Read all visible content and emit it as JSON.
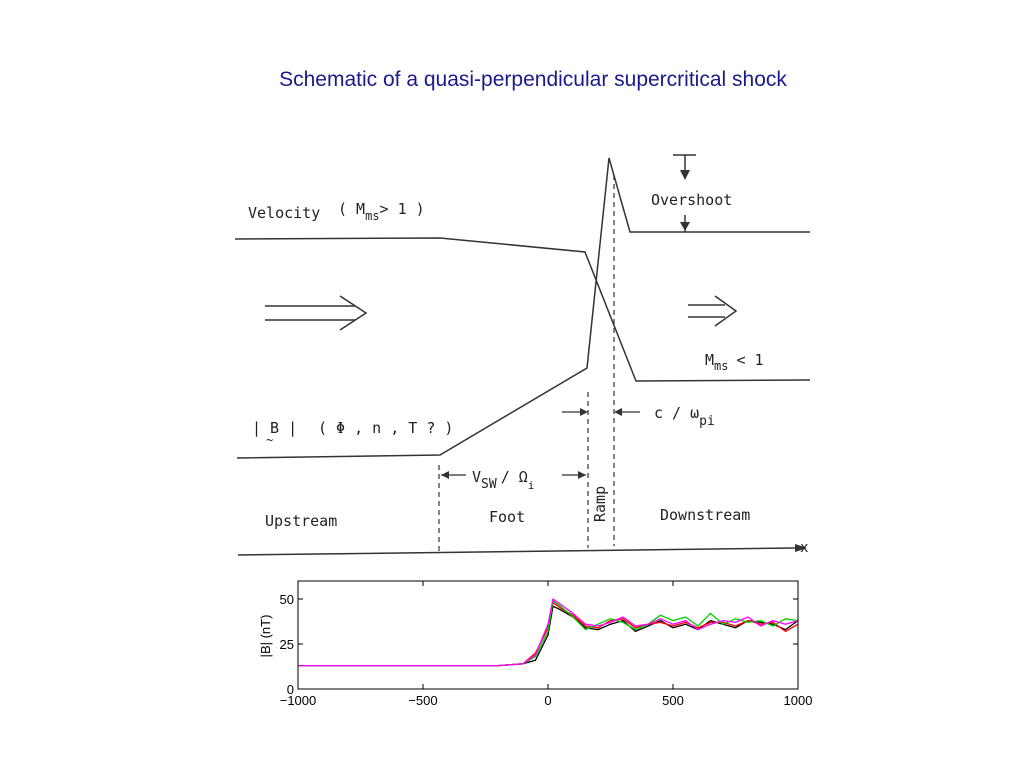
{
  "title": "Schematic of a quasi-perpendicular supercritical shock",
  "schematic": {
    "velocity_label": "Velocity",
    "velocity_condition_open": "( M",
    "velocity_condition_sub": "ms",
    "velocity_condition_close": "> 1 )",
    "overshoot_label": "Overshoot",
    "downstream_mach": "M",
    "downstream_mach_sub": "ms",
    "downstream_mach_rel": "< 1",
    "b_label": "| B |",
    "b_params": "( Φ , n , T  ? )",
    "inertial_length": "c / ω",
    "inertial_length_sub": "pi",
    "foot_width": "V",
    "foot_width_sub": "SW",
    "foot_width_mid": "/ Ω",
    "foot_width_sub2": "i",
    "ramp_label": "Ramp",
    "upstream_label": "Upstream",
    "foot_label": "Foot",
    "downstream_label": "Downstream",
    "x_axis_label": "x"
  },
  "chart_data": {
    "type": "line",
    "ylabel": "|B| (nT)",
    "xlabel": "",
    "xlim": [
      -1000,
      1000
    ],
    "ylim": [
      0,
      60
    ],
    "x_ticks": [
      -1000,
      -500,
      0,
      500,
      1000
    ],
    "x_tick_labels": [
      "−1000",
      "−500",
      "0",
      "500",
      "1000"
    ],
    "y_ticks": [
      0,
      25,
      50
    ],
    "y_tick_labels": [
      "0",
      "25",
      "50"
    ],
    "grid": false,
    "series": [
      {
        "color": "#000000",
        "x": [
          -1000,
          -200,
          -100,
          -50,
          0,
          20,
          50,
          100,
          150,
          200,
          250,
          300,
          350,
          400,
          450,
          500,
          550,
          600,
          650,
          700,
          750,
          800,
          850,
          900,
          950,
          1000
        ],
        "values": [
          13,
          13,
          14,
          16,
          30,
          46,
          44,
          40,
          34,
          33,
          36,
          38,
          32,
          35,
          38,
          34,
          36,
          33,
          38,
          36,
          34,
          38,
          37,
          36,
          33,
          38
        ]
      },
      {
        "color": "#ff0000",
        "x": [
          -1000,
          -200,
          -100,
          -50,
          0,
          20,
          50,
          100,
          150,
          200,
          250,
          300,
          350,
          400,
          450,
          500,
          550,
          600,
          650,
          700,
          750,
          800,
          850,
          900,
          950,
          1000
        ],
        "values": [
          13,
          13,
          14,
          20,
          34,
          48,
          45,
          41,
          35,
          34,
          38,
          39,
          34,
          36,
          37,
          35,
          37,
          34,
          37,
          37,
          35,
          38,
          36,
          37,
          32,
          36
        ]
      },
      {
        "color": "#00cc00",
        "x": [
          -1000,
          -200,
          -100,
          -50,
          0,
          20,
          50,
          100,
          150,
          200,
          250,
          300,
          350,
          400,
          450,
          500,
          550,
          600,
          650,
          700,
          750,
          800,
          850,
          900,
          950,
          1000
        ],
        "values": [
          13,
          13,
          14,
          18,
          32,
          49,
          46,
          40,
          33,
          36,
          39,
          37,
          33,
          36,
          41,
          38,
          40,
          35,
          42,
          36,
          39,
          37,
          38,
          35,
          39,
          38
        ]
      },
      {
        "color": "#ff00ff",
        "x": [
          -1000,
          -200,
          -100,
          -50,
          0,
          20,
          50,
          100,
          150,
          200,
          250,
          300,
          350,
          400,
          450,
          500,
          550,
          600,
          650,
          700,
          750,
          800,
          850,
          900,
          950,
          1000
        ],
        "values": [
          13,
          13,
          14,
          19,
          36,
          50,
          47,
          42,
          36,
          35,
          37,
          40,
          35,
          36,
          39,
          36,
          38,
          33,
          36,
          38,
          37,
          40,
          35,
          38,
          36,
          38
        ]
      }
    ]
  }
}
